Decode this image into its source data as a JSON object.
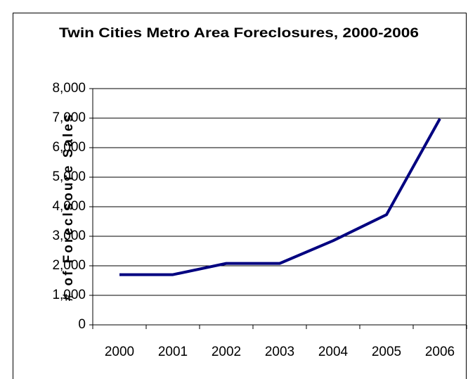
{
  "chart_data": {
    "type": "line",
    "title": "Twin Cities Metro Area Foreclosures, 2000-2006",
    "y_label": "# of Foreclsoure Sales",
    "categories": [
      "2000",
      "2001",
      "2002",
      "2003",
      "2004",
      "2005",
      "2006"
    ],
    "values": [
      1700,
      1700,
      2080,
      2080,
      2850,
      3730,
      6980
    ],
    "color": "#000080",
    "ylim": [
      0,
      8000
    ],
    "yticks": [
      0,
      {
        "value": 1000,
        "label": "1,000"
      },
      {
        "value": 2000,
        "label": "2,000"
      },
      {
        "value": 3000,
        "label": "3,000"
      },
      {
        "value": 4000,
        "label": "4,000"
      },
      {
        "value": 5000,
        "label": "5,000"
      },
      {
        "value": 6000,
        "label": "6,000"
      },
      {
        "value": 7000,
        "label": "7,000"
      },
      {
        "value": 8000,
        "label": "8,000"
      }
    ],
    "grid": true
  }
}
